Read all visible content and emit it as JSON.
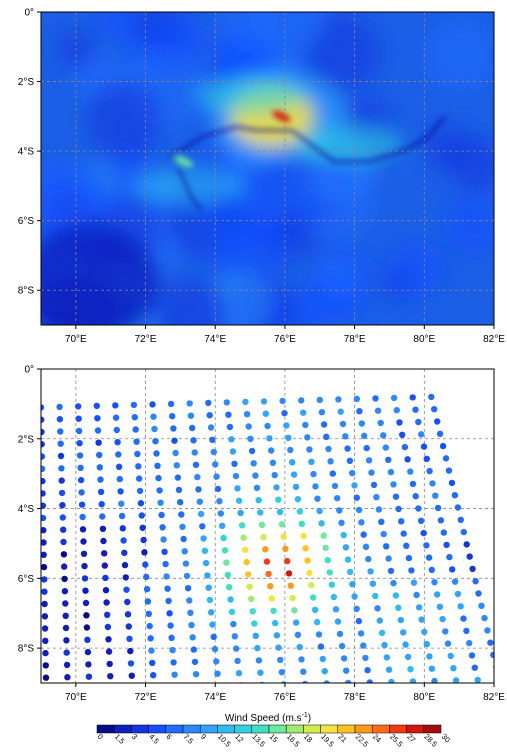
{
  "chart_data": [
    {
      "type": "heatmap",
      "panel": "upper",
      "description_variable": "wind speed field",
      "x_ticks": [
        "70°E",
        "72°E",
        "74°E",
        "76°E",
        "78°E",
        "80°E",
        "82°E"
      ],
      "y_ticks": [
        "0°",
        "2°S",
        "4°S",
        "6°S",
        "8°S"
      ],
      "xlim": [
        69,
        82
      ],
      "ylim": [
        -9,
        0
      ],
      "grid": true,
      "max_center": {
        "lon": 75.8,
        "lat": -3.0,
        "value": 27
      },
      "features": [
        {
          "kind": "core",
          "lon": 75.8,
          "lat": -3.0,
          "radius_deg": 1.1,
          "value": 20
        },
        {
          "kind": "streak",
          "lon": 75.9,
          "lat": -3.0,
          "value": 28
        },
        {
          "kind": "streak",
          "lon": 73.1,
          "lat": -4.3,
          "value": 16
        },
        {
          "kind": "band",
          "lon": 75.0,
          "lat": -2.4,
          "value": 13
        },
        {
          "kind": "band",
          "lon": 77.8,
          "lat": -3.8,
          "value": 12
        },
        {
          "kind": "band",
          "lon": 73.3,
          "lat": -5.0,
          "value": 11
        },
        {
          "kind": "trough",
          "lon": 70.0,
          "lat": -8.5,
          "value": 1.5
        }
      ]
    },
    {
      "type": "scatter",
      "panel": "lower",
      "description_variable": "wind speed observations (dots colored by value)",
      "x_ticks": [
        "70°E",
        "72°E",
        "74°E",
        "76°E",
        "78°E",
        "80°E",
        "82°E"
      ],
      "y_ticks": [
        "0°",
        "2°S",
        "4°S",
        "6°S",
        "8°S"
      ],
      "xlim": [
        69,
        82
      ],
      "ylim": [
        -9,
        0
      ],
      "grid": true,
      "swath_corners": [
        [
          69.0,
          -1.1
        ],
        [
          80.2,
          -0.8
        ],
        [
          82.0,
          -8.9
        ],
        [
          69.0,
          -9.2
        ]
      ],
      "hotspot": {
        "lon": 75.8,
        "lat": -5.6,
        "value": 25
      }
    }
  ],
  "colorbar": {
    "title": "Wind Speed (m.s",
    "title_superscript": "-1",
    "title_close": ")",
    "ticks": [
      "0",
      "1.5",
      "3",
      "4.5",
      "6",
      "7.5",
      "9",
      "10.5",
      "12",
      "13.5",
      "15",
      "16.5",
      "18",
      "19.5",
      "21",
      "22.5",
      "24",
      "25.5",
      "27",
      "28.5",
      "30"
    ],
    "colors": [
      "#0a0a8c",
      "#0f1fbf",
      "#1235e0",
      "#1450ff",
      "#1f6cff",
      "#2b88ff",
      "#30a3ff",
      "#2bbcf2",
      "#2ed2e0",
      "#3fe0c2",
      "#6ee89c",
      "#a2ea6e",
      "#d2ec4a",
      "#f6e23a",
      "#ffc21f",
      "#ff9a17",
      "#ff6a12",
      "#f23a10",
      "#d2170e",
      "#a80b0b"
    ]
  }
}
